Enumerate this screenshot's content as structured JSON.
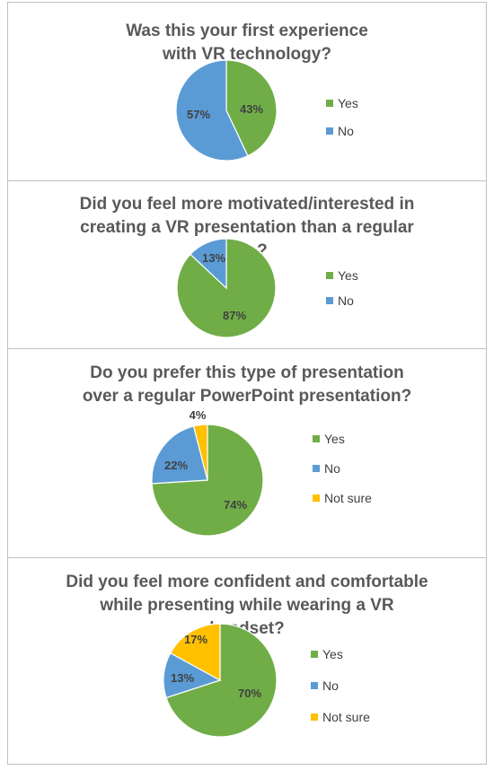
{
  "chart_data": [
    {
      "type": "pie",
      "title": "Was this your first experience with VR technology?",
      "categories": [
        "Yes",
        "No"
      ],
      "values": [
        43,
        57
      ],
      "data_labels": [
        "43%",
        "57%"
      ],
      "colors": [
        "#70ad47",
        "#5b9bd5"
      ],
      "legend": "right"
    },
    {
      "type": "pie",
      "title": "Did you feel more motivated/interested in creating a VR presentation than a regular one?",
      "categories": [
        "Yes",
        "No"
      ],
      "values": [
        87,
        13
      ],
      "data_labels": [
        "87%",
        "13%"
      ],
      "colors": [
        "#70ad47",
        "#5b9bd5"
      ],
      "legend": "right"
    },
    {
      "type": "pie",
      "title": "Do you prefer this type of presentation over a regular PowerPoint presentation?",
      "categories": [
        "Yes",
        "No",
        "Not sure"
      ],
      "values": [
        74,
        22,
        4
      ],
      "data_labels": [
        "74%",
        "22%",
        "4%"
      ],
      "colors": [
        "#70ad47",
        "#5b9bd5",
        "#ffc000"
      ],
      "legend": "right"
    },
    {
      "type": "pie",
      "title": "Did you feel more confident and comfortable while presenting while wearing a VR headset?",
      "categories": [
        "Yes",
        "No",
        "Not sure"
      ],
      "values": [
        70,
        13,
        17
      ],
      "data_labels": [
        "70%",
        "13%",
        "17%"
      ],
      "colors": [
        "#70ad47",
        "#5b9bd5",
        "#ffc000"
      ],
      "legend": "right"
    }
  ]
}
